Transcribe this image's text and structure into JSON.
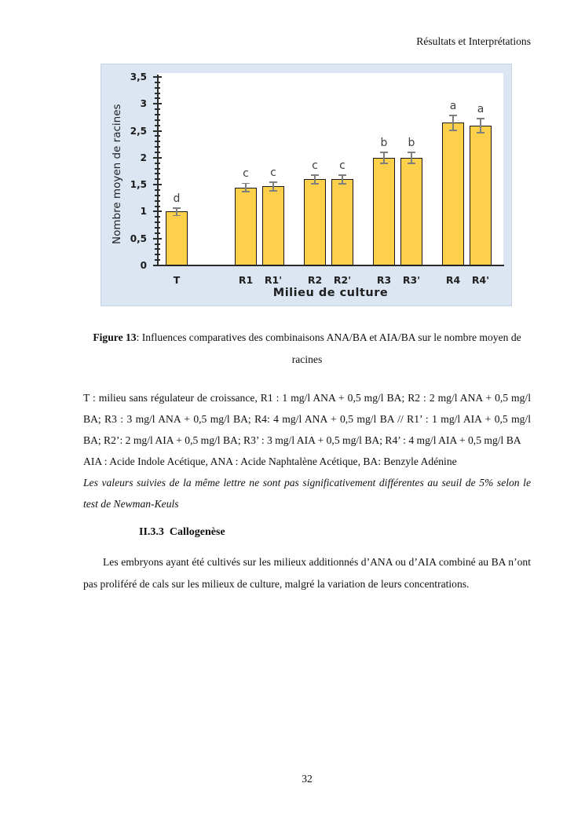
{
  "page": {
    "header": "Résultats et Interprétations",
    "page_number": "32"
  },
  "figure": {
    "caption_label": "Figure 13",
    "caption_text": ": Influences comparatives des combinaisons ANA/BA et AIA/BA sur le nombre moyen de racines"
  },
  "notes": {
    "treatments": "T : milieu sans régulateur de croissance, R1 : 1 mg/l ANA + 0,5 mg/l BA; R2 : 2 mg/l ANA + 0,5 mg/l BA; R3 : 3 mg/l ANA + 0,5 mg/l BA; R4: 4 mg/l ANA + 0,5 mg/l BA // R1’ : 1 mg/l AIA + 0,5 mg/l BA; R2’: 2 mg/l AIA + 0,5 mg/l BA; R3’ : 3 mg/l AIA + 0,5 mg/l BA; R4’ : 4 mg/l AIA + 0,5 mg/l BA",
    "abbreviations": "AIA : Acide Indole Acétique, ANA : Acide Naphtalène Acétique, BA: Benzyle Adénine",
    "stats_note": "Les valeurs suivies de la même lettre ne sont pas significativement différentes au seuil de 5% selon le test de Newman-Keuls"
  },
  "section": {
    "heading_number": "II.3.3",
    "heading_title": "Callogenèse",
    "body": "Les embryons ayant été cultivés sur les milieux additionnés d’ANA ou d’AIA combiné au BA n’ont pas proliféré de cals sur les milieux de culture, malgré la variation de leurs concentrations."
  },
  "chart_data": {
    "type": "bar",
    "categories": [
      "T",
      "R1",
      "R1'",
      "R2",
      "R2'",
      "R3",
      "R3'",
      "R4",
      "R4'"
    ],
    "values": [
      1.0,
      1.45,
      1.47,
      1.6,
      1.6,
      2.0,
      2.0,
      2.65,
      2.6
    ],
    "error_bars": [
      0.07,
      0.08,
      0.08,
      0.08,
      0.08,
      0.1,
      0.1,
      0.14,
      0.13
    ],
    "significance_letters": [
      "d",
      "c",
      "c",
      "c",
      "c",
      "b",
      "b",
      "a",
      "a"
    ],
    "title": "",
    "xlabel": "Milieu de culture",
    "ylabel": "Nombre moyen de racines",
    "ylim": [
      0,
      3.5
    ],
    "ytick_step": 0.5,
    "ytick_labels": [
      "0",
      "0,5",
      "1",
      "1,5",
      "2",
      "2,5",
      "3",
      "3,5"
    ],
    "minor_tick_step": 0.1,
    "grid": false,
    "legend": false,
    "bar_color": "#FDD04C",
    "bar_border_color": "#1a1a1a",
    "chart_bg": "#DCE6F2",
    "plot_bg": "#FFFFFF",
    "error_bar_color": "#7f7f7f"
  }
}
